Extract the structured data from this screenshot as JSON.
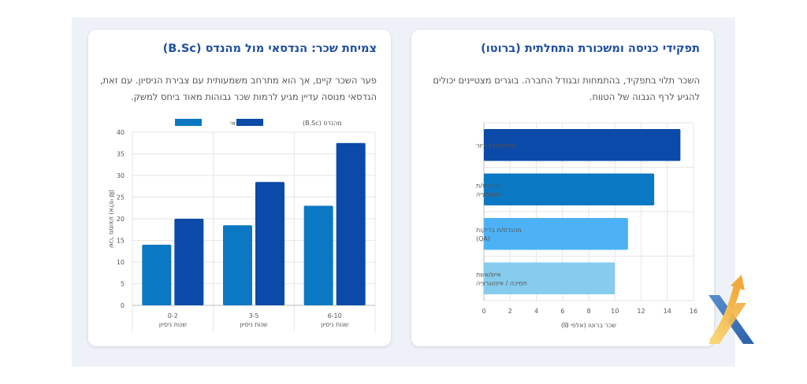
{
  "charts": {
    "right": {
      "title": "תפקידי כניסה ומשכורת התחלתית (ברוטו)",
      "description": "השכר תלוי בתפקיד, בהתמחות ובגודל החברה. בוגרים מצטיינים יכולים להגיע לרף הגבוה של הטווח."
    },
    "left": {
      "title": "צמיחת שכר: הנדסאי מול מהנדס (B.Sc)",
      "description": "פער השכר קיים, אך הוא מתרחב משמעותית עם צבירת הניסיון. עם זאת, הנדסאי מנוסה עדיין מגיע לרמות שכר גבוהות מאוד ביחס למשק."
    }
  },
  "chart_data": [
    {
      "type": "bar",
      "orientation": "horizontal",
      "categories": [
        "מפתח/ת ג'וניור",
        "מהנדס/ת אוטומציה",
        "מהנדס/ת בדיקות (QA)",
        "איש/אשת תמיכה / אינטגרציה"
      ],
      "category_lines": [
        [
          "מפתח/ת ג'וניור"
        ],
        [
          "מהנדס/ת",
          "אוטומציה"
        ],
        [
          "מהנדס/ת בדיקות",
          "(QA)"
        ],
        [
          "איש/אשת",
          "תמיכה / אינטגרציה"
        ]
      ],
      "values": [
        15,
        13,
        11,
        10
      ],
      "colors": [
        "#0b4aa8",
        "#0a78c2",
        "#4db2f5",
        "#86ccee"
      ],
      "xlabel": "שכר ברוטו (אלפי ₪)",
      "xlim": [
        0,
        16
      ],
      "xticks": [
        0,
        2,
        4,
        6,
        8,
        10,
        12,
        14,
        16
      ],
      "grid": true
    },
    {
      "type": "bar",
      "orientation": "vertical",
      "categories": [
        "0-2\nשנות ניסיון",
        "3-5\nשנות ניסיון",
        "6-10\nשנות ניסיון"
      ],
      "category_lines": [
        [
          "0-2",
          "שנות ניסיון"
        ],
        [
          "3-5",
          "שנות ניסיון"
        ],
        [
          "6-10",
          "שנות ניסיון"
        ]
      ],
      "series": [
        {
          "name": "הנדסאי",
          "values": [
            14,
            18.5,
            23
          ],
          "color": "#0a78c2"
        },
        {
          "name": "מהנדס (B.Sc)",
          "values": [
            20,
            28.5,
            37.5
          ],
          "color": "#0b4aa8"
        }
      ],
      "ylabel": "שכר ממוצע (אלפי ₪)",
      "ylim": [
        0,
        40
      ],
      "yticks": [
        0,
        5,
        10,
        15,
        20,
        25,
        30,
        35,
        40
      ],
      "legend": "top",
      "grid": true
    }
  ]
}
